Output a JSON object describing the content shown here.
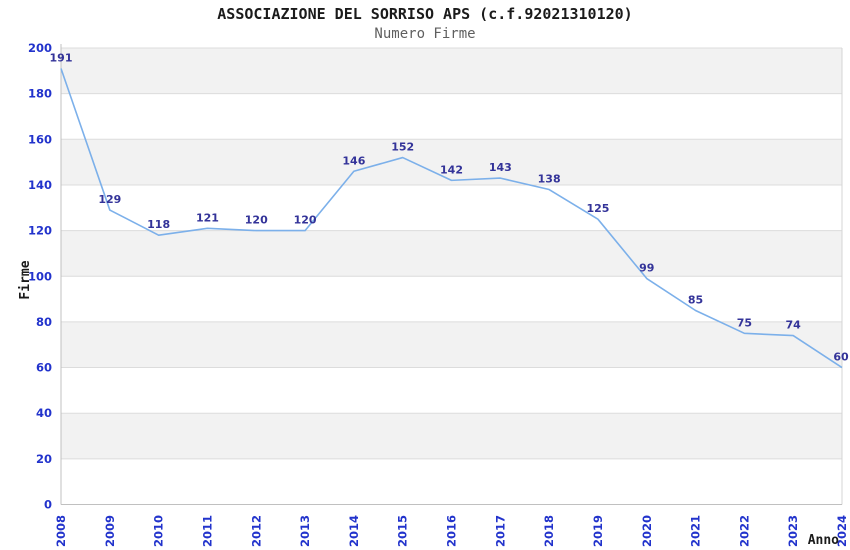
{
  "title": "ASSOCIAZIONE DEL SORRISO APS (c.f.92021310120)",
  "subtitle": "Numero Firme",
  "chart_data": {
    "type": "line",
    "x": [
      "2008",
      "2009",
      "2010",
      "2011",
      "2012",
      "2013",
      "2014",
      "2015",
      "2016",
      "2017",
      "2018",
      "2019",
      "2020",
      "2021",
      "2022",
      "2023",
      "2024"
    ],
    "series": [
      {
        "name": "Numero Firme",
        "values": [
          191,
          129,
          118,
          121,
          120,
          120,
          146,
          152,
          142,
          143,
          138,
          125,
          99,
          85,
          75,
          74,
          60
        ]
      }
    ],
    "title": "ASSOCIAZIONE DEL SORRISO APS (c.f.92021310120)",
    "subtitle": "Numero Firme",
    "xlabel": "Anno",
    "ylabel": "Firme",
    "ylim": [
      0,
      200
    ],
    "ytick_step": 20,
    "grid": "horizontal gridlines with alternating shaded bands",
    "legend_position": "none",
    "point_labels_shown": true,
    "colors": {
      "line": "#7cb0ea",
      "point_label": "#333399",
      "tick_label": "#2233cc",
      "band": "#f2f2f2",
      "gridline": "#dcdcdc",
      "axis_line": "#c0c0c0",
      "right_border": "#d4d4d4",
      "axis_title": "#1b1b1b"
    }
  }
}
